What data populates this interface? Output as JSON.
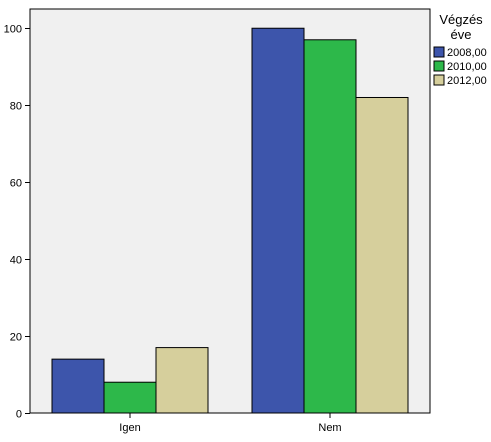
{
  "chart_data": {
    "type": "bar",
    "categories": [
      "Igen",
      "Nem"
    ],
    "series": [
      {
        "name": "2008,00",
        "values": [
          14,
          100
        ],
        "color": "#3d55ab"
      },
      {
        "name": "2010,00",
        "values": [
          8,
          97
        ],
        "color": "#2db84a"
      },
      {
        "name": "2012,00",
        "values": [
          17,
          82
        ],
        "color": "#d6cf9c"
      }
    ],
    "title": "",
    "xlabel": "",
    "ylabel": "",
    "ylim": [
      0,
      105
    ],
    "yticks": [
      0,
      20,
      40,
      60,
      80,
      100
    ],
    "grid": false,
    "legend": {
      "title_line1": "Végzés",
      "title_line2": "éve",
      "position": "right"
    },
    "colors": {
      "plot_background": "#f0f0f0",
      "bar_border": "#000000"
    }
  }
}
